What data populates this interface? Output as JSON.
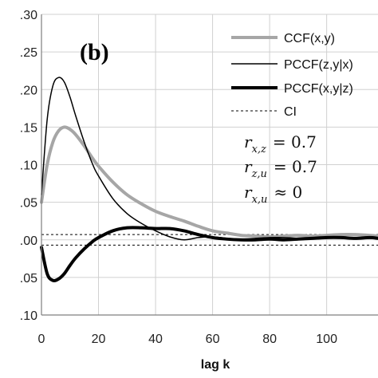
{
  "chart_data": {
    "type": "line",
    "panel_label": "(b)",
    "xlabel": "lag k",
    "ylabel": "",
    "xlim": [
      0,
      118
    ],
    "ylim": [
      -0.1,
      0.3
    ],
    "x_ticks": [
      0,
      20,
      40,
      60,
      80,
      100
    ],
    "x_tick_labels": [
      "0",
      "20",
      "40",
      "60",
      "80",
      "100"
    ],
    "y_ticks": [
      0.3,
      0.25,
      0.2,
      0.15,
      0.1,
      0.05,
      0.0,
      -0.05,
      -0.1
    ],
    "y_tick_labels": [
      ".30",
      ".25",
      ".20",
      ".15",
      ".10",
      ".05",
      ".00",
      ".05",
      ".10"
    ],
    "grid": true,
    "legend_position": "top-right",
    "series": [
      {
        "name": "CCF(x,y)",
        "color": "#a6a6a6",
        "width": 4,
        "dash": "",
        "x": [
          0,
          2,
          4,
          6,
          8,
          10,
          12,
          15,
          18,
          20,
          25,
          30,
          35,
          40,
          45,
          50,
          55,
          60,
          65,
          70,
          75,
          80,
          85,
          90,
          95,
          100,
          105,
          110,
          115,
          118
        ],
        "y": [
          0.05,
          0.1,
          0.13,
          0.145,
          0.15,
          0.147,
          0.14,
          0.125,
          0.108,
          0.098,
          0.077,
          0.06,
          0.048,
          0.038,
          0.031,
          0.025,
          0.018,
          0.012,
          0.009,
          0.006,
          0.005,
          0.004,
          0.005,
          0.006,
          0.005,
          0.006,
          0.007,
          0.007,
          0.006,
          0.005
        ]
      },
      {
        "name": "PCCF(z,y|x)",
        "color": "#000000",
        "width": 1.5,
        "dash": "",
        "x": [
          0,
          2,
          4,
          6,
          8,
          10,
          12,
          15,
          18,
          20,
          25,
          30,
          35,
          40,
          45,
          50,
          55,
          60,
          65,
          70,
          75,
          80,
          85,
          90,
          95,
          100,
          105,
          110,
          115,
          118
        ],
        "y": [
          0.06,
          0.16,
          0.205,
          0.216,
          0.21,
          0.19,
          0.165,
          0.13,
          0.1,
          0.085,
          0.055,
          0.035,
          0.022,
          0.012,
          0.004,
          0.0,
          0.003,
          0.004,
          0.002,
          0.001,
          0.002,
          0.003,
          0.003,
          0.002,
          0.001,
          0.002,
          0.003,
          0.003,
          0.002,
          0.002
        ]
      },
      {
        "name": "PCCF(x,y|z)",
        "color": "#000000",
        "width": 4,
        "dash": "",
        "x": [
          0,
          2,
          4,
          6,
          8,
          10,
          12,
          15,
          18,
          20,
          25,
          30,
          35,
          40,
          45,
          50,
          55,
          60,
          65,
          70,
          75,
          80,
          85,
          90,
          95,
          100,
          105,
          110,
          115,
          118
        ],
        "y": [
          -0.01,
          -0.045,
          -0.054,
          -0.052,
          -0.045,
          -0.034,
          -0.024,
          -0.012,
          -0.002,
          0.003,
          0.012,
          0.016,
          0.016,
          0.015,
          0.015,
          0.012,
          0.007,
          0.003,
          0.001,
          0.0,
          0.0,
          0.001,
          0.0,
          0.001,
          0.002,
          0.003,
          0.003,
          0.002,
          0.003,
          0.002
        ]
      }
    ],
    "confidence_interval": {
      "name": "CI",
      "upper": 0.007,
      "lower": -0.007,
      "color": "#000000",
      "dash": "3,3"
    },
    "annotations": [
      {
        "var": "r",
        "sub": "x,z",
        "op": "= 0.7"
      },
      {
        "var": "r",
        "sub": "z,u",
        "op": "= 0.7"
      },
      {
        "var": "r",
        "sub": "x,u",
        "op": "≈ 0"
      }
    ]
  }
}
